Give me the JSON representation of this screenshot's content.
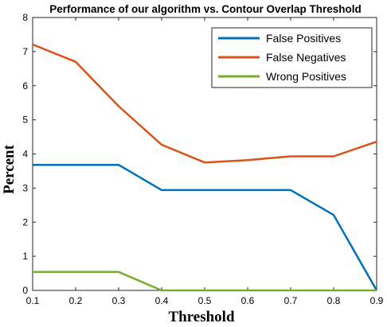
{
  "chart_data": {
    "type": "line",
    "title": "Performance of our algorithm vs. Contour Overlap Threshold",
    "xlabel": "Threshold",
    "ylabel": "Percent",
    "x": [
      0.1,
      0.2,
      0.3,
      0.4,
      0.5,
      0.6,
      0.7,
      0.8,
      0.9
    ],
    "xlim": [
      0.1,
      0.9
    ],
    "ylim": [
      0,
      8
    ],
    "xticks": [
      "0.1",
      "0.2",
      "0.3",
      "0.4",
      "0.5",
      "0.6",
      "0.7",
      "0.8",
      "0.9"
    ],
    "yticks": [
      "0",
      "1",
      "2",
      "3",
      "4",
      "5",
      "6",
      "7",
      "8"
    ],
    "grid": false,
    "legend_position": "top-right",
    "series": [
      {
        "name": "False Positives",
        "color": "#0072BD",
        "values": [
          3.68,
          3.68,
          3.68,
          2.94,
          2.94,
          2.94,
          2.94,
          2.21,
          0.0
        ]
      },
      {
        "name": "False Negatives",
        "color": "#D95319",
        "values": [
          7.21,
          6.7,
          5.4,
          4.27,
          3.75,
          3.82,
          3.93,
          3.93,
          4.36
        ]
      },
      {
        "name": "Wrong Positives",
        "color": "#77AC30",
        "values": [
          0.54,
          0.54,
          0.54,
          0.0,
          0.0,
          0.0,
          0.0,
          0.0,
          0.0
        ]
      }
    ]
  }
}
